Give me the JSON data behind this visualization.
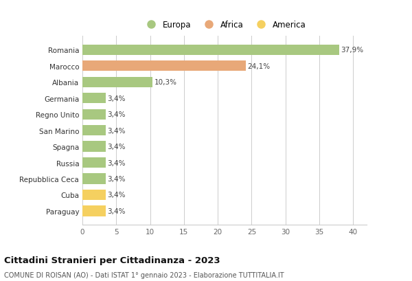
{
  "categories": [
    "Paraguay",
    "Cuba",
    "Repubblica Ceca",
    "Russia",
    "Spagna",
    "San Marino",
    "Regno Unito",
    "Germania",
    "Albania",
    "Marocco",
    "Romania"
  ],
  "values": [
    3.4,
    3.4,
    3.4,
    3.4,
    3.4,
    3.4,
    3.4,
    3.4,
    10.3,
    24.1,
    37.9
  ],
  "labels": [
    "3,4%",
    "3,4%",
    "3,4%",
    "3,4%",
    "3,4%",
    "3,4%",
    "3,4%",
    "3,4%",
    "10,3%",
    "24,1%",
    "37,9%"
  ],
  "colors": [
    "#f5d060",
    "#f5d060",
    "#a8c880",
    "#a8c880",
    "#a8c880",
    "#a8c880",
    "#a8c880",
    "#a8c880",
    "#a8c880",
    "#e8a878",
    "#a8c880"
  ],
  "legend_labels": [
    "Europa",
    "Africa",
    "America"
  ],
  "legend_colors": [
    "#a8c880",
    "#e8a878",
    "#f5d060"
  ],
  "title": "Cittadini Stranieri per Cittadinanza - 2023",
  "subtitle": "COMUNE DI ROISAN (AO) - Dati ISTAT 1° gennaio 2023 - Elaborazione TUTTITALIA.IT",
  "xlim": [
    0,
    42
  ],
  "xticks": [
    0,
    5,
    10,
    15,
    20,
    25,
    30,
    35,
    40
  ],
  "bg_color": "#ffffff",
  "grid_color": "#cccccc",
  "bar_height": 0.65
}
